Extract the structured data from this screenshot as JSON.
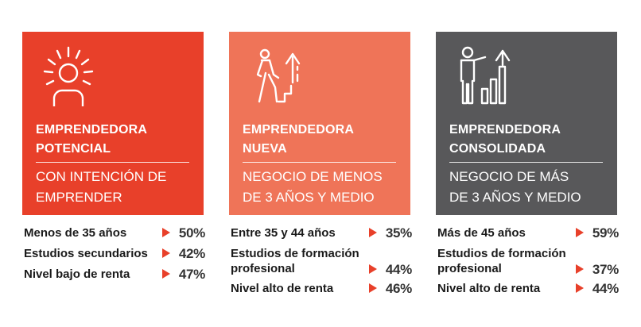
{
  "colors": {
    "card1": "#e8402a",
    "card2": "#ef7458",
    "card3": "#58585a",
    "arrow": "#e8402a"
  },
  "cards": [
    {
      "icon": "person-radiating-icon",
      "title_line1": "EMPRENDEDORA",
      "title_line2": "POTENCIAL",
      "sub_line1": "CON INTENCIÓN DE",
      "sub_line2": "EMPRENDER",
      "stats": [
        {
          "label_line1": "Menos de 35 años",
          "label_line2": "",
          "value": "50%"
        },
        {
          "label_line1": "Estudios secundarios",
          "label_line2": "",
          "value": "42%"
        },
        {
          "label_line1": "Nivel bajo de renta",
          "label_line2": "",
          "value": "47%"
        }
      ]
    },
    {
      "icon": "person-climbing-stairs-icon",
      "title_line1": "EMPRENDEDORA",
      "title_line2": "NUEVA",
      "sub_line1": "NEGOCIO DE MENOS",
      "sub_line2": "DE 3 AÑOS Y MEDIO",
      "stats": [
        {
          "label_line1": "Entre 35 y 44 años",
          "label_line2": "",
          "value": "35%"
        },
        {
          "label_line1": "Estudios de formación",
          "label_line2": "profesional",
          "value": "44%"
        },
        {
          "label_line1": "Nivel alto de renta",
          "label_line2": "",
          "value": "46%"
        }
      ]
    },
    {
      "icon": "person-growth-chart-icon",
      "title_line1": "EMPRENDEDORA",
      "title_line2": "CONSOLIDADA",
      "sub_line1": "NEGOCIO DE MÁS",
      "sub_line2": "DE 3 AÑOS Y MEDIO",
      "stats": [
        {
          "label_line1": "Más de 45 años",
          "label_line2": "",
          "value": "59%"
        },
        {
          "label_line1": "Estudios de formación",
          "label_line2": "profesional",
          "value": "37%"
        },
        {
          "label_line1": "Nivel alto de renta",
          "label_line2": "",
          "value": "44%"
        }
      ]
    }
  ]
}
